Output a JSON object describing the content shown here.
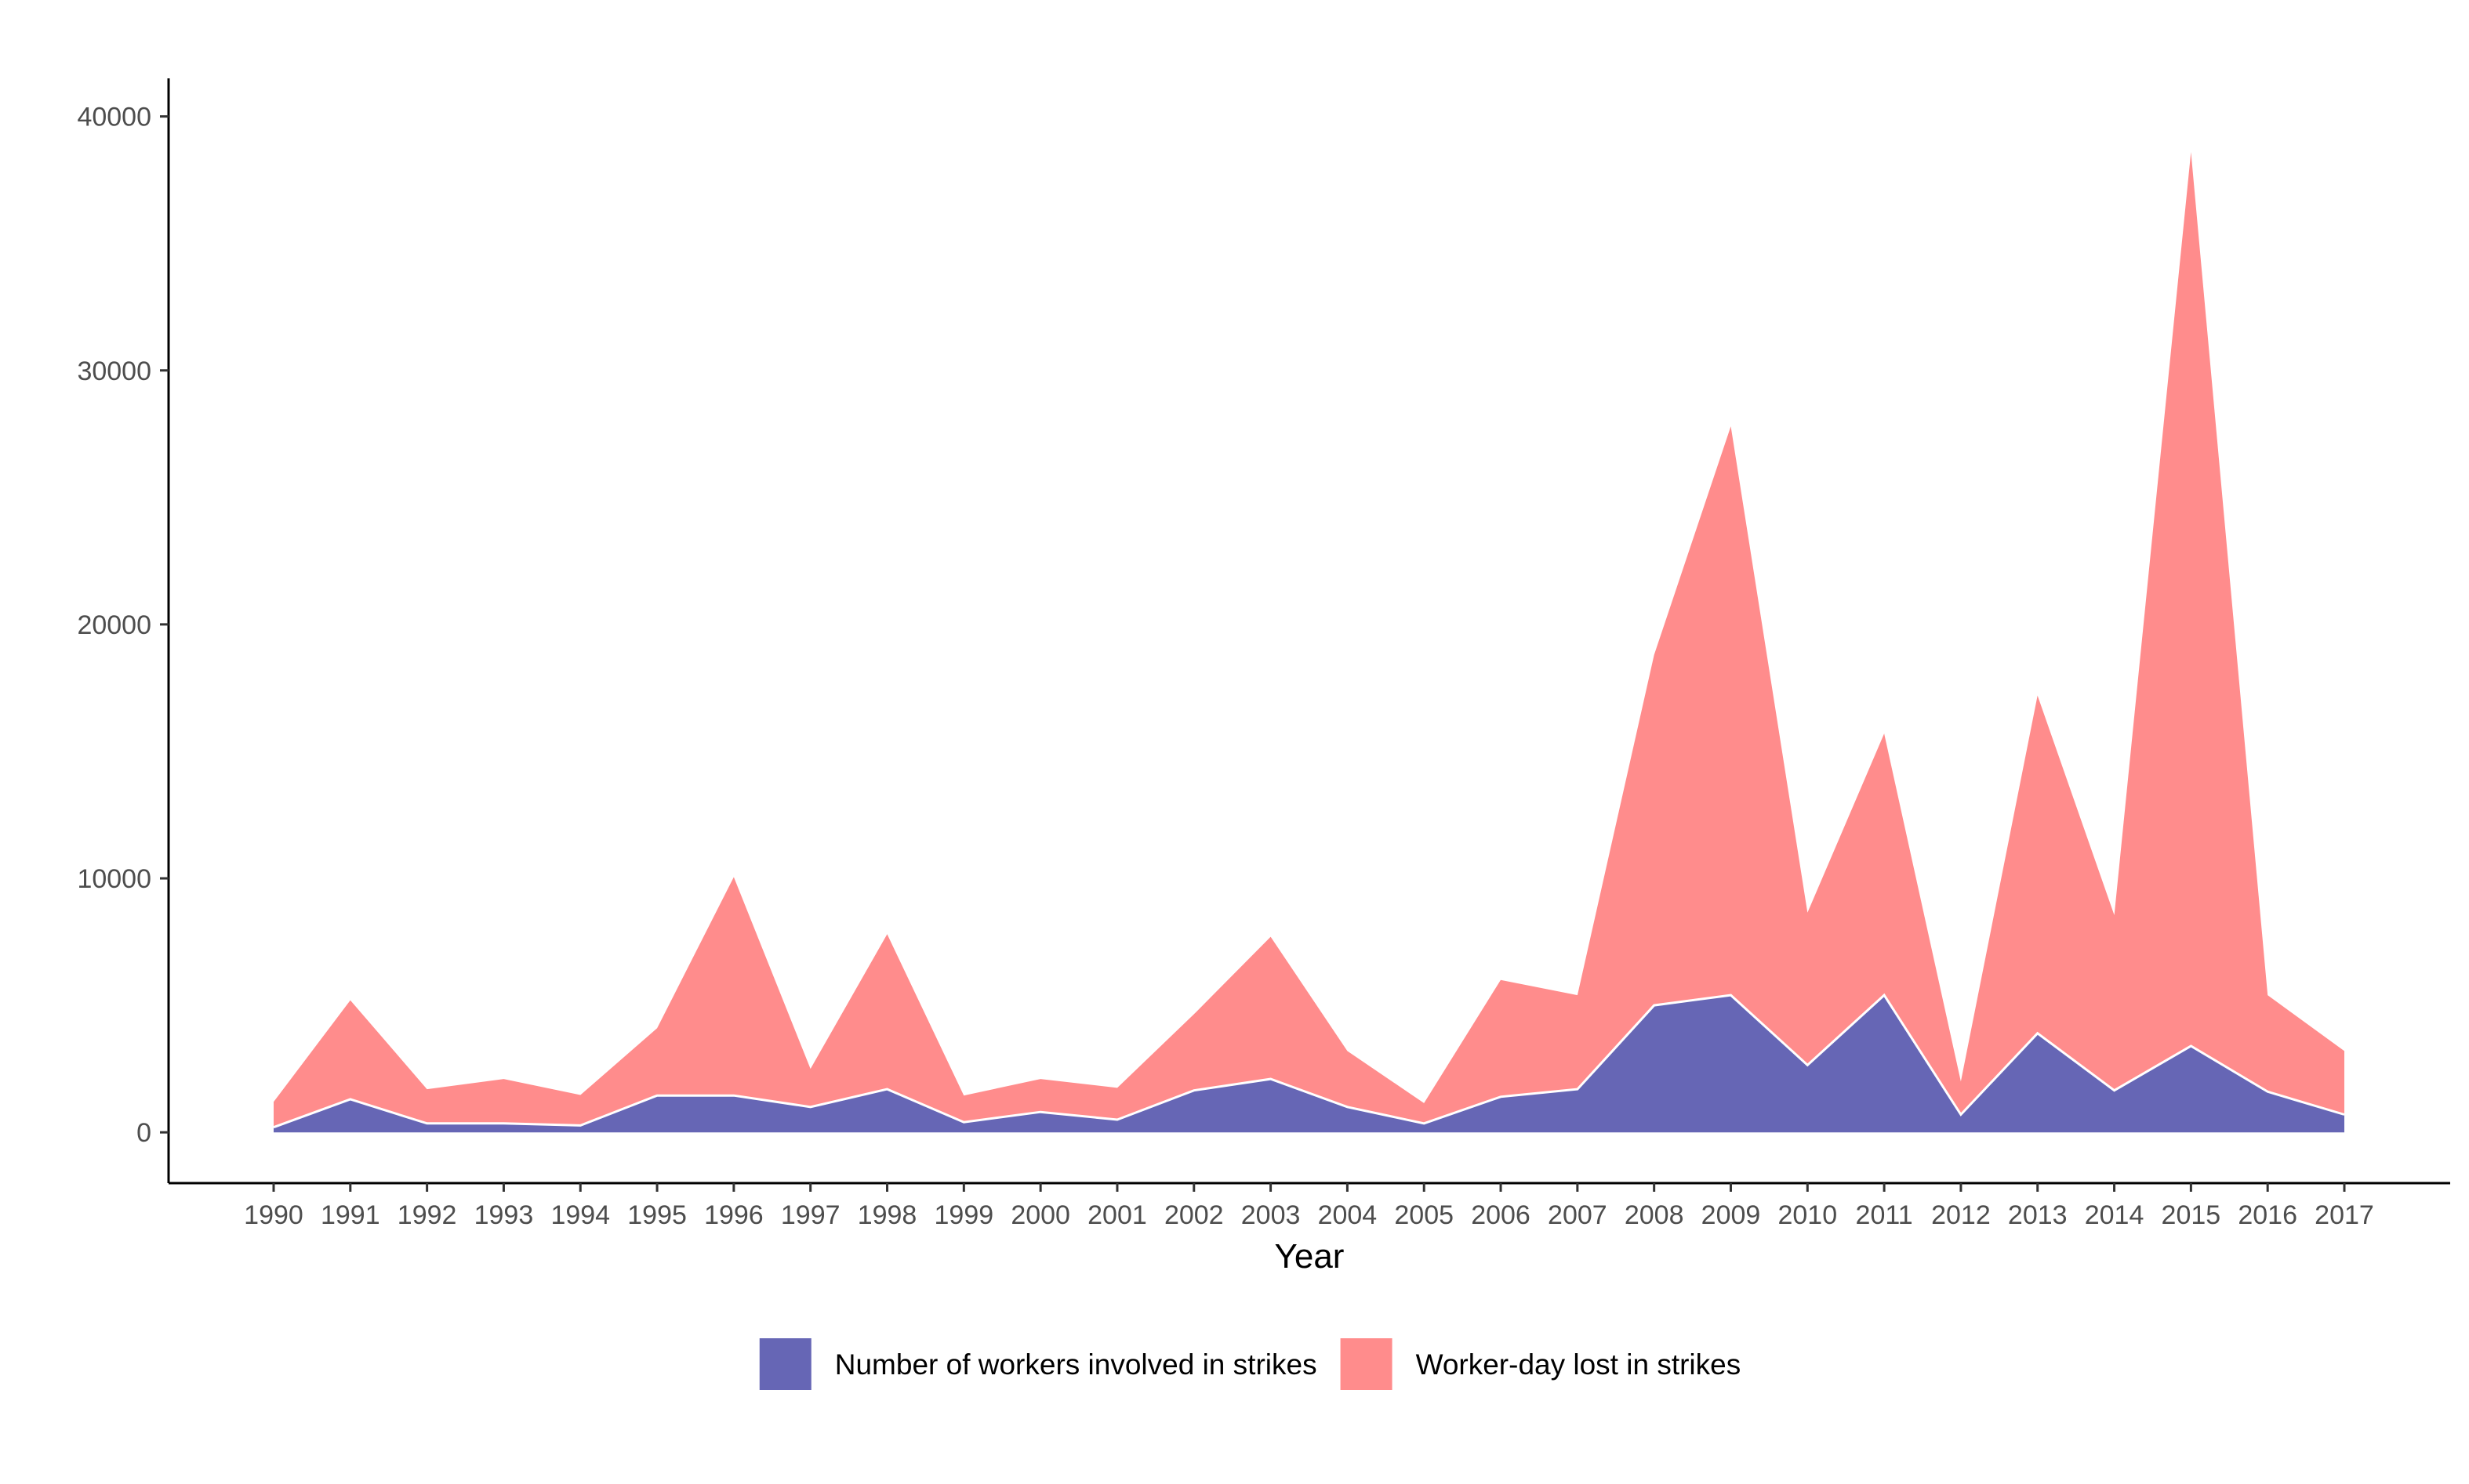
{
  "chart_data": {
    "type": "area",
    "stacked": true,
    "x": [
      "1990",
      "1991",
      "1992",
      "1993",
      "1994",
      "1995",
      "1996",
      "1997",
      "1998",
      "1999",
      "2000",
      "2001",
      "2002",
      "2003",
      "2004",
      "2005",
      "2006",
      "2007",
      "2008",
      "2009",
      "2010",
      "2011",
      "2012",
      "2013",
      "2014",
      "2015",
      "2016",
      "2017"
    ],
    "series": [
      {
        "name": "Number of workers involved in strikes",
        "color": "#6666b5",
        "values": [
          200,
          1300,
          350,
          350,
          270,
          1450,
          1450,
          1000,
          1700,
          400,
          800,
          500,
          1650,
          2100,
          1000,
          350,
          1400,
          1700,
          5000,
          5400,
          2650,
          5400,
          700,
          3900,
          1650,
          3400,
          1600,
          700
        ]
      },
      {
        "name": "Worker-day lost in strikes",
        "color": "#ff8c8c",
        "values": [
          1000,
          3900,
          1350,
          1750,
          1200,
          2650,
          8600,
          1500,
          6100,
          1050,
          1300,
          1250,
          3000,
          5600,
          2200,
          800,
          4600,
          3700,
          13800,
          22400,
          6000,
          10300,
          1300,
          13300,
          6900,
          35200,
          3800,
          2500
        ]
      }
    ],
    "title": "",
    "xlabel": "Year",
    "ylabel": "",
    "ylim": [
      -2000,
      41500
    ],
    "yticks": [
      "0",
      "10000",
      "20000",
      "30000",
      "40000"
    ],
    "grid": false,
    "legend_position": "bottom"
  }
}
